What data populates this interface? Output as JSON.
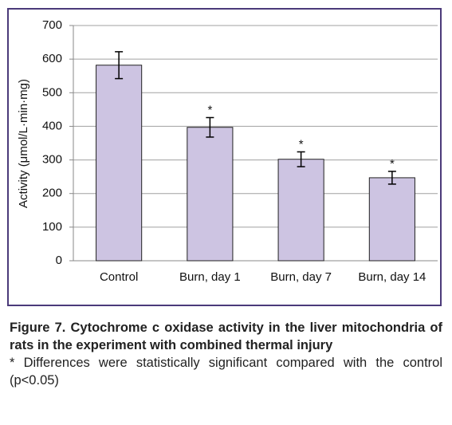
{
  "chart_data": {
    "type": "bar",
    "ylabel": "Activity (μmol/L·min·mg)",
    "categories": [
      "Control",
      "Burn, day 1",
      "Burn, day 7",
      "Burn, day 14"
    ],
    "values": [
      582,
      397,
      302,
      247
    ],
    "errors": [
      40,
      29,
      22,
      19
    ],
    "annotations": [
      null,
      "*",
      "*",
      "*"
    ],
    "color": "#cdc4e2",
    "ylim": [
      0,
      700
    ],
    "yticks": [
      0,
      100,
      200,
      300,
      400,
      500,
      600,
      700
    ],
    "grid": true
  },
  "caption": {
    "title": "Figure 7. Cytochrome c oxidase activity in the liver mitochondria of rats in the experiment with combined thermal injury",
    "note": "* Differences were statistically significant compared with the control (p<0.05)"
  }
}
